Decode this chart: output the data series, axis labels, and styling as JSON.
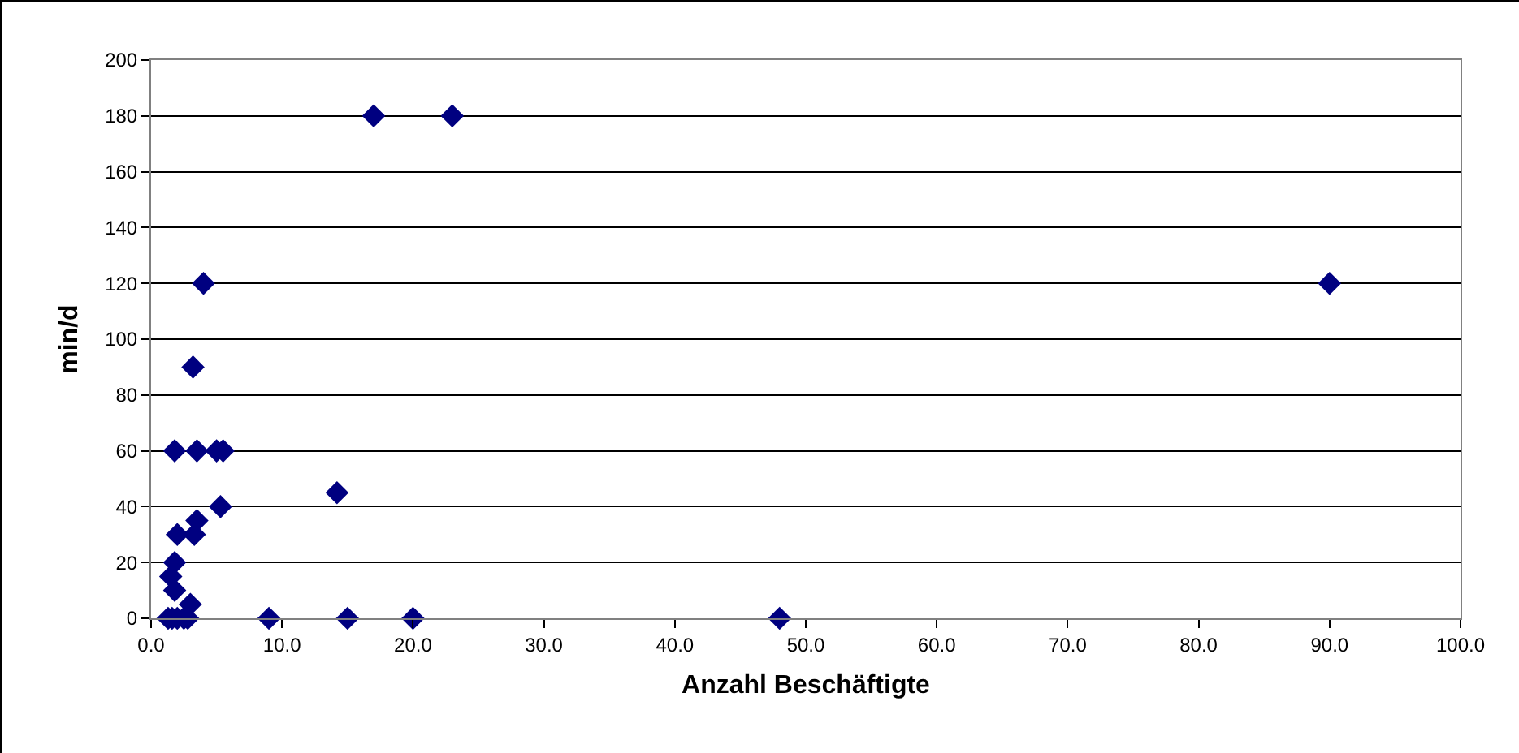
{
  "chart_data": {
    "type": "scatter",
    "xlabel": "Anzahl Beschäftigte",
    "ylabel": "min/d",
    "marker": "diamond",
    "grid": "y",
    "x": [
      17,
      23,
      4,
      90,
      3.2,
      1.8,
      3.5,
      5,
      5.5,
      14.2,
      5.3,
      3.5,
      3.3,
      2,
      1.8,
      1.5,
      1.8,
      2.3,
      3,
      1.3,
      1.6,
      2,
      2.5,
      2.8,
      9,
      15,
      20,
      48
    ],
    "series": [
      {
        "color": "#000080",
        "values": [
          180,
          180,
          120,
          120,
          90,
          60,
          60,
          60,
          60,
          45,
          40,
          35,
          30,
          30,
          20,
          15,
          10,
          null,
          5,
          0,
          0,
          0,
          0,
          0,
          0,
          0,
          0,
          0
        ]
      }
    ],
    "xlim": [
      0,
      100
    ],
    "xticks": [
      {
        "value": 0,
        "label": "0.0"
      },
      {
        "value": 10,
        "label": "10.0"
      },
      {
        "value": 20,
        "label": "20.0"
      },
      {
        "value": 30,
        "label": "30.0"
      },
      {
        "value": 40,
        "label": "40.0"
      },
      {
        "value": 50,
        "label": "50.0"
      },
      {
        "value": 60,
        "label": "60.0"
      },
      {
        "value": 70,
        "label": "70.0"
      },
      {
        "value": 80,
        "label": "80.0"
      },
      {
        "value": 90,
        "label": "90.0"
      },
      {
        "value": 100,
        "label": "100.0"
      }
    ],
    "ylim": [
      0,
      200
    ],
    "yticks": [
      0,
      20,
      40,
      60,
      80,
      100,
      120,
      140,
      160,
      180,
      200
    ]
  }
}
